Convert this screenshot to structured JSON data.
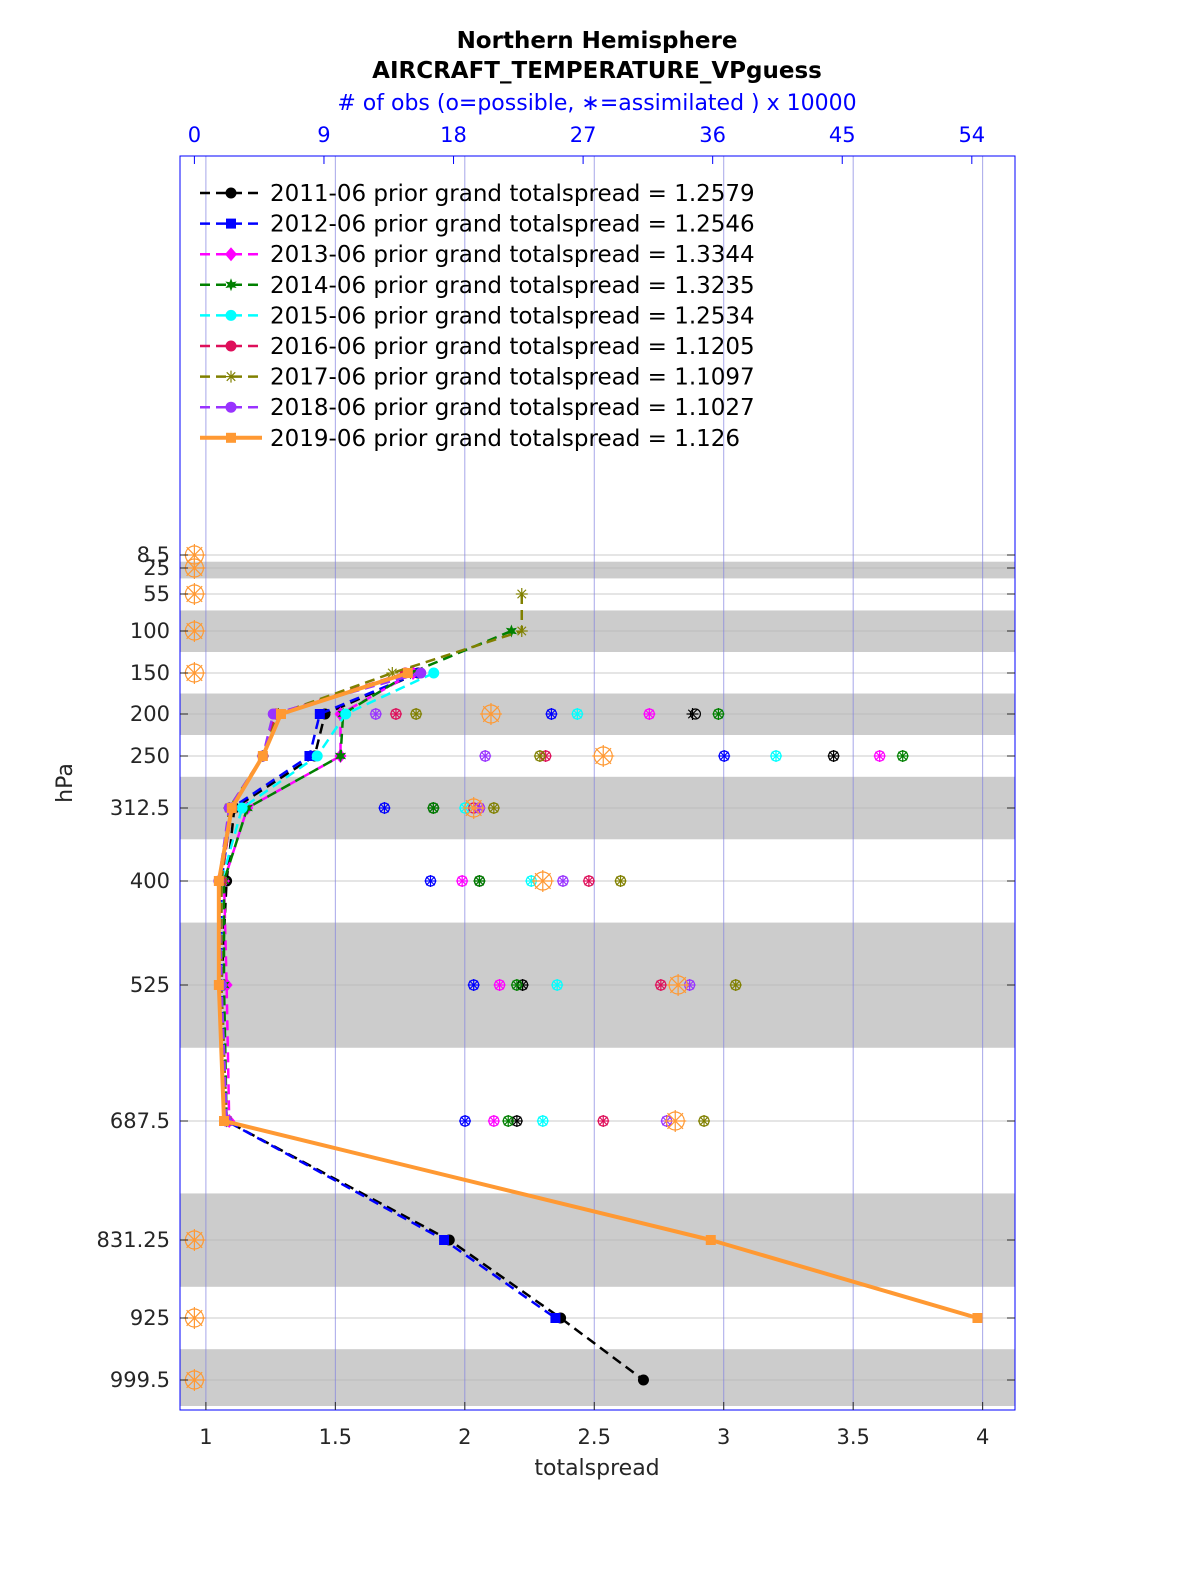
{
  "chart_data": {
    "type": "line",
    "title": "Northern Hemisphere",
    "subtitle": "AIRCRAFT_TEMPERATURE_VPguess",
    "xlabel": "totalspread",
    "ylabel": "hPa",
    "top_axis_label": "# of obs (o=possible, ∗=assimilated ) x 10000",
    "xlim": [
      0.9,
      4.125
    ],
    "x_ticks": [
      "1",
      "1.5",
      "2",
      "2.5",
      "3",
      "3.5",
      "4"
    ],
    "top_xlim": [
      -1,
      57
    ],
    "top_x_ticks": [
      "0",
      "9",
      "18",
      "27",
      "36",
      "45",
      "54"
    ],
    "grid": true,
    "legend_position": "top-left",
    "y_scale": "pressure, increasing downward",
    "y_ticks": [
      "8.5",
      "25",
      "55",
      "100",
      "150",
      "200",
      "250",
      "312.5",
      "400",
      "525",
      "687.5",
      "831.25",
      "925",
      "999.5"
    ],
    "levels": [
      8.5,
      25,
      55,
      100,
      150,
      200,
      250,
      312.5,
      400,
      525,
      687.5,
      831.25,
      925,
      999.5
    ],
    "shaded_bands_hPa": [
      [
        17,
        37
      ],
      [
        75,
        125
      ],
      [
        175,
        225
      ],
      [
        275,
        350
      ],
      [
        450,
        600
      ],
      [
        775,
        887.5
      ],
      [
        962.5,
        1037
      ]
    ],
    "series": [
      {
        "name": "2011-06",
        "label": "2011-06 prior grand totalspread = 1.2579",
        "color": "#000000",
        "style": "dashed",
        "marker": "circle",
        "spread": [
          null,
          null,
          null,
          null,
          1.82,
          1.46,
          1.42,
          1.11,
          1.08,
          1.06,
          1.08,
          1.94,
          2.37,
          2.69
        ],
        "possible": [
          null,
          null,
          null,
          null,
          null,
          34.8,
          44.4,
          16.6,
          19.8,
          22.8,
          22.4,
          null,
          null,
          null
        ],
        "assimilated": [
          null,
          null,
          null,
          null,
          null,
          34.6,
          44.4,
          16.6,
          19.8,
          22.8,
          22.4,
          null,
          null,
          null
        ]
      },
      {
        "name": "2012-06",
        "label": "2012-06 prior grand totalspread = 1.2546",
        "color": "#0000ff",
        "style": "dashed",
        "marker": "square",
        "spread": [
          null,
          null,
          null,
          null,
          1.82,
          1.44,
          1.4,
          1.1,
          1.06,
          1.06,
          1.08,
          1.92,
          2.35,
          null
        ],
        "possible": [
          null,
          null,
          null,
          null,
          null,
          24.8,
          36.8,
          13.2,
          16.4,
          19.4,
          18.8,
          null,
          null,
          null
        ],
        "assimilated": [
          null,
          null,
          null,
          null,
          null,
          24.8,
          36.8,
          13.2,
          16.4,
          19.4,
          18.8,
          null,
          null,
          null
        ]
      },
      {
        "name": "2013-06",
        "label": "2013-06 prior grand totalspread = 1.3344",
        "color": "#ff00ff",
        "style": "dashed",
        "marker": "diamond",
        "spread": [
          null,
          null,
          null,
          null,
          1.8,
          1.52,
          1.52,
          1.16,
          1.07,
          1.08,
          1.09,
          null,
          null,
          null
        ],
        "possible": [
          null,
          null,
          null,
          null,
          null,
          31.6,
          47.6,
          19.8,
          18.6,
          21.2,
          20.8,
          null,
          null,
          null
        ],
        "assimilated": [
          null,
          null,
          null,
          null,
          null,
          31.6,
          47.6,
          19.8,
          18.6,
          21.2,
          20.8,
          null,
          null,
          null
        ]
      },
      {
        "name": "2014-06",
        "label": "2014-06 prior grand totalspread = 1.3235",
        "color": "#008000",
        "style": "dashed",
        "marker": "hexagram",
        "spread": [
          null,
          null,
          null,
          2.18,
          1.79,
          1.53,
          1.52,
          1.16,
          1.07,
          1.07,
          1.08,
          null,
          null,
          null
        ],
        "possible": [
          null,
          null,
          null,
          null,
          null,
          36.4,
          49.2,
          16.6,
          19.8,
          22.4,
          21.8,
          null,
          null,
          null
        ],
        "assimilated": [
          null,
          null,
          null,
          null,
          null,
          36.4,
          49.2,
          16.6,
          19.8,
          22.4,
          21.8,
          null,
          null,
          null
        ]
      },
      {
        "name": "2015-06",
        "label": "2015-06 prior grand totalspread = 1.2534",
        "color": "#00ffff",
        "style": "dashed",
        "marker": "circle",
        "spread": [
          null,
          null,
          null,
          null,
          1.88,
          1.54,
          1.43,
          1.14,
          1.06,
          1.06,
          1.08,
          null,
          null,
          null
        ],
        "possible": [
          null,
          null,
          null,
          null,
          null,
          26.6,
          40.4,
          18.8,
          23.4,
          25.2,
          24.2,
          null,
          null,
          null
        ],
        "assimilated": [
          null,
          null,
          null,
          null,
          null,
          26.6,
          40.4,
          18.8,
          23.4,
          25.2,
          24.2,
          null,
          null,
          null
        ]
      },
      {
        "name": "2016-06",
        "label": "2016-06 prior grand totalspread = 1.1205",
        "color": "#de0f5a",
        "style": "dashed",
        "marker": "circle",
        "spread": [
          null,
          null,
          null,
          null,
          1.77,
          1.27,
          1.22,
          1.1,
          1.06,
          1.06,
          1.08,
          null,
          null,
          null
        ],
        "possible": [
          null,
          null,
          null,
          null,
          null,
          14.0,
          24.4,
          19.4,
          27.4,
          32.4,
          28.4,
          null,
          null,
          null
        ],
        "assimilated": [
          null,
          null,
          null,
          null,
          null,
          14.0,
          24.4,
          19.4,
          27.4,
          32.4,
          28.4,
          null,
          null,
          null
        ]
      },
      {
        "name": "2017-06",
        "label": "2017-06 prior grand totalspread = 1.1097",
        "color": "#808000",
        "style": "dashed",
        "marker": "asterisk",
        "spread": [
          null,
          null,
          2.22,
          2.22,
          1.72,
          1.28,
          1.22,
          1.09,
          1.06,
          1.06,
          1.08,
          null,
          null,
          null
        ],
        "possible": [
          null,
          null,
          null,
          null,
          null,
          15.4,
          24.0,
          20.8,
          29.6,
          37.6,
          35.4,
          null,
          null,
          null
        ],
        "assimilated": [
          null,
          null,
          null,
          null,
          null,
          15.4,
          24.0,
          20.8,
          29.6,
          37.6,
          35.4,
          null,
          null,
          null
        ]
      },
      {
        "name": "2018-06",
        "label": "2018-06 prior grand totalspread = 1.1027",
        "color": "#9933ff",
        "style": "dashed",
        "marker": "circle",
        "spread": [
          null,
          null,
          null,
          null,
          1.83,
          1.26,
          1.22,
          1.09,
          1.05,
          1.06,
          1.08,
          null,
          null,
          null
        ],
        "possible": [
          null,
          null,
          null,
          null,
          null,
          12.6,
          20.2,
          19.8,
          25.6,
          34.4,
          32.8,
          null,
          null,
          null
        ],
        "assimilated": [
          null,
          null,
          null,
          null,
          null,
          12.6,
          20.2,
          19.8,
          25.6,
          34.4,
          32.8,
          null,
          null,
          null
        ]
      },
      {
        "name": "2019-06",
        "label": "2019-06 prior grand totalspread = 1.126",
        "color": "#ff9933",
        "style": "solid",
        "marker": "square",
        "spread": [
          null,
          null,
          null,
          null,
          1.78,
          1.29,
          1.22,
          1.1,
          1.05,
          1.05,
          1.07,
          2.95,
          3.98,
          null
        ],
        "possible": [
          0,
          0,
          0,
          0,
          0,
          20.6,
          28.4,
          19.4,
          24.2,
          33.6,
          33.4,
          0,
          0,
          0
        ],
        "assimilated": [
          0,
          0,
          0,
          0,
          0,
          20.6,
          28.4,
          19.4,
          24.2,
          33.6,
          33.4,
          0,
          0,
          0
        ]
      }
    ]
  }
}
